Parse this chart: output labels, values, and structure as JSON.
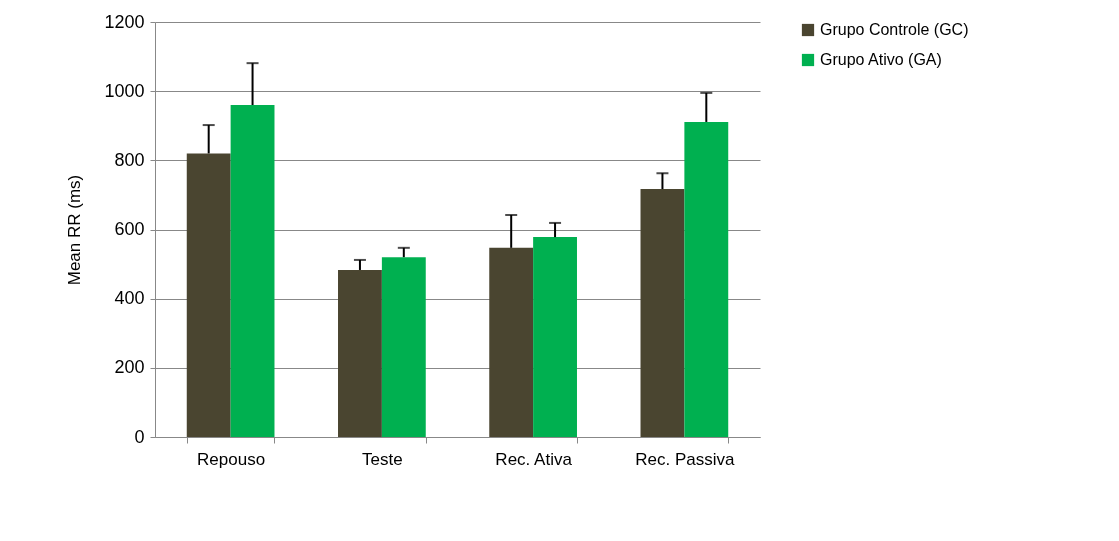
{
  "chart_data": {
    "type": "bar",
    "ylabel": "Mean RR (ms)",
    "categories": [
      "Repouso",
      "Teste",
      "Rec. Ativa",
      "Rec. Passiva"
    ],
    "series": [
      {
        "name": "Grupo Controle (GC)",
        "color": "#4a4530",
        "values": [
          820,
          483,
          547,
          717
        ],
        "errors": [
          [
            820,
            902
          ],
          [
            483,
            512
          ],
          [
            547,
            642
          ],
          [
            717,
            763
          ]
        ]
      },
      {
        "name": "Grupo Ativo (GA)",
        "color": "#00b050",
        "values": [
          960,
          520,
          578,
          911
        ],
        "errors": [
          [
            960,
            1081
          ],
          [
            520,
            547
          ],
          [
            578,
            619
          ],
          [
            911,
            995
          ]
        ]
      }
    ],
    "ylim": [
      0,
      1200
    ],
    "yticks": [
      0,
      200,
      400,
      600,
      800,
      1000,
      1200
    ],
    "grid": "y",
    "legend": "right"
  }
}
